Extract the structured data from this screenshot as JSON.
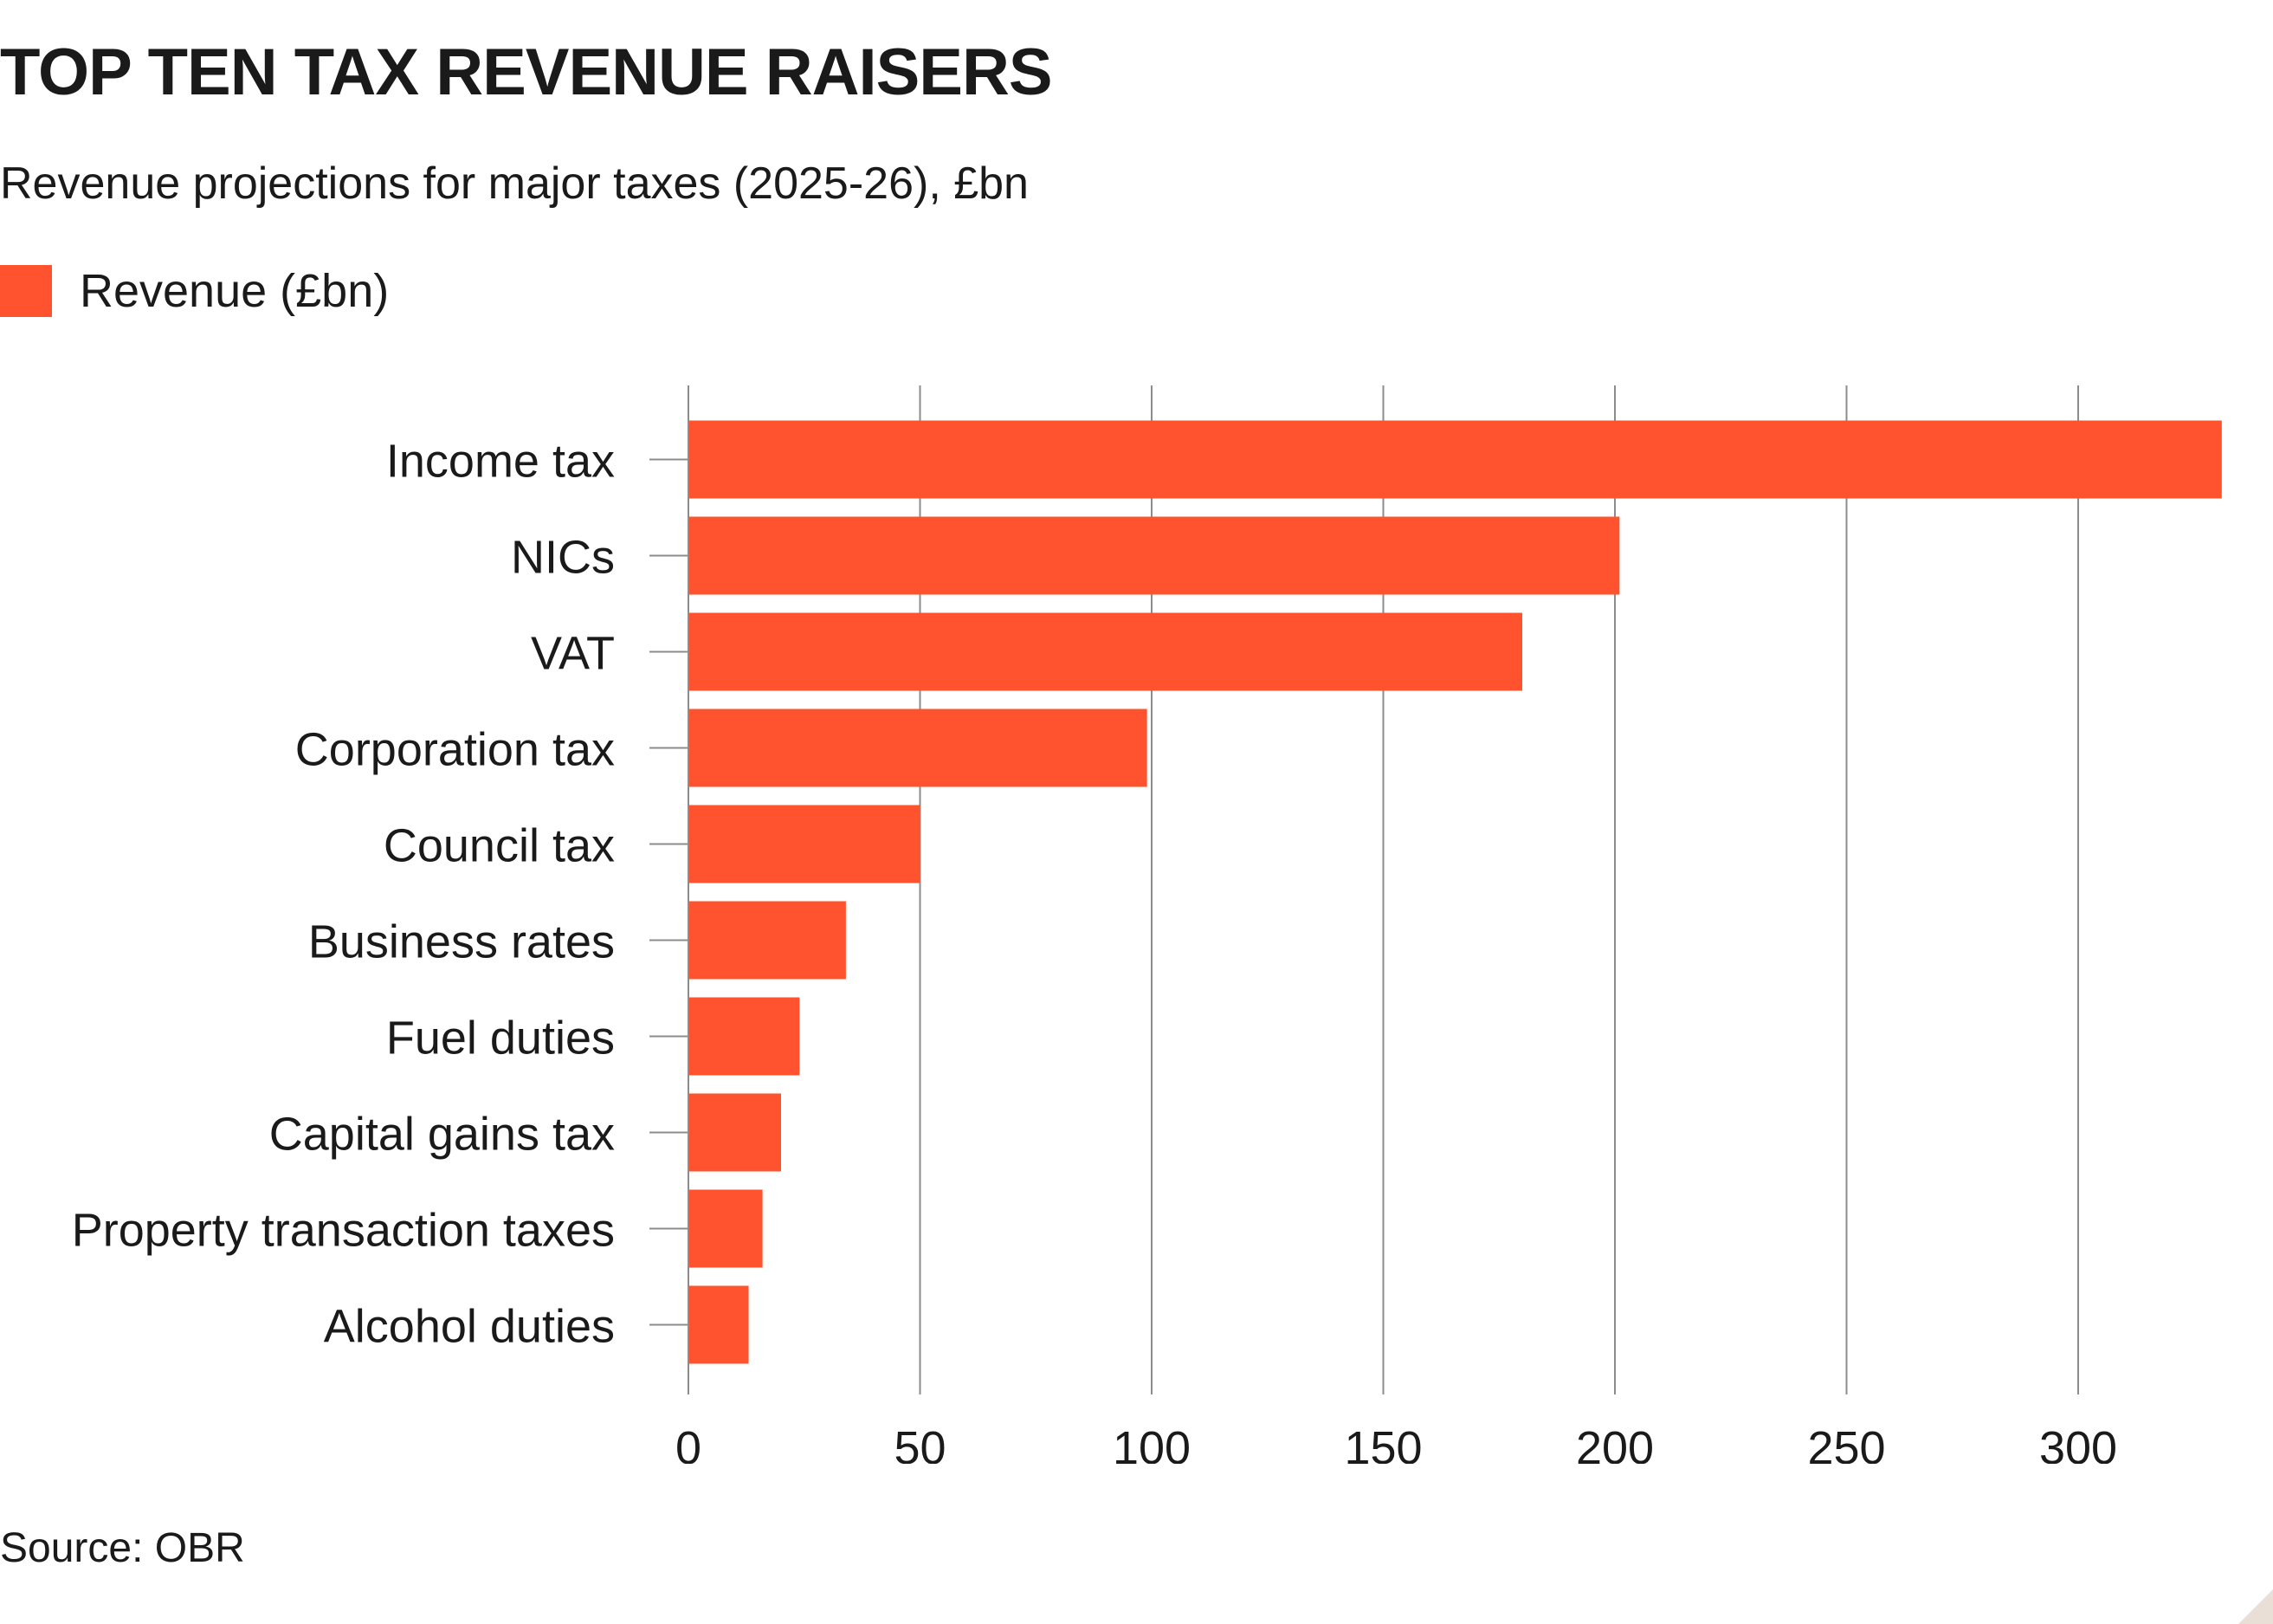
{
  "header": {
    "title": "TOP TEN TAX REVENUE RAISERS",
    "subtitle": "Revenue projections for major taxes (2025-26), £bn"
  },
  "footer": {
    "source": "Source: OBR"
  },
  "colors": {
    "bar": "#ff532f",
    "grid": "#8c8c8c",
    "text": "#1a1a1a",
    "corner": "#e9dfd7"
  },
  "chart_data": {
    "type": "bar",
    "orientation": "horizontal",
    "title": "TOP TEN TAX REVENUE RAISERS",
    "subtitle": "Revenue projections for major taxes (2025-26), £bn",
    "categories": [
      "Income tax",
      "NICs",
      "VAT",
      "Corporation tax",
      "Council tax",
      "Business rates",
      "Fuel duties",
      "Capital gains tax",
      "Property transaction taxes",
      "Alcohol duties"
    ],
    "series": [
      {
        "name": "Revenue (£bn)",
        "values": [
          331,
          201,
          180,
          99,
          50,
          34,
          24,
          20,
          16,
          13
        ]
      }
    ],
    "xlim": [
      0,
      330
    ],
    "xticks": [
      0,
      50,
      100,
      150,
      200,
      250,
      300
    ],
    "grid": true,
    "legend": "top-left",
    "source": "Source: OBR"
  }
}
